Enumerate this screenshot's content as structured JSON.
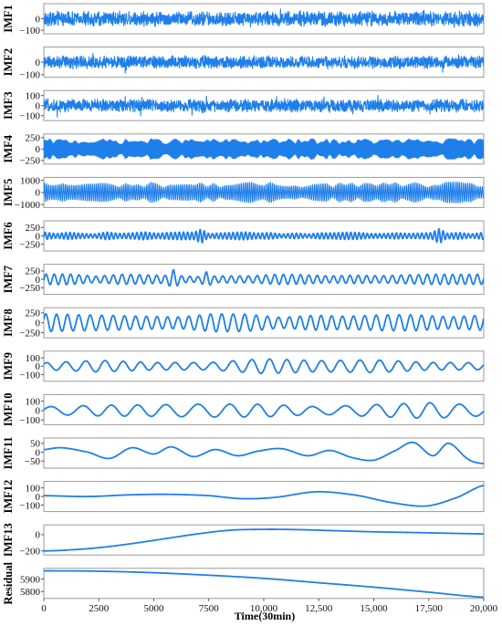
{
  "chart_data": {
    "type": "line",
    "xlabel": "Time(30min)",
    "xlim": [
      0,
      20000
    ],
    "x_ticks": [
      0,
      2500,
      5000,
      7500,
      10000,
      12500,
      15000,
      17500,
      20000
    ],
    "x_tick_labels": [
      "0",
      "2500",
      "5000",
      "7500",
      "10,000",
      "12,500",
      "15,000",
      "17,500",
      "20,000"
    ],
    "grid": false,
    "line_color": "#1f7fea",
    "panels": [
      {
        "name": "IMF1",
        "ylim": [
          -130,
          130
        ],
        "y_ticks": [
          0,
          -100
        ],
        "y_tick_labels": [
          "0",
          "−100"
        ],
        "amplitude": 70,
        "kind": "noise",
        "wave_count": 5000
      },
      {
        "name": "IMF2",
        "ylim": [
          -120,
          120
        ],
        "y_ticks": [
          0,
          -100
        ],
        "y_tick_labels": [
          "0",
          "−100"
        ],
        "amplitude": 55,
        "kind": "noise",
        "wave_count": 2500
      },
      {
        "name": "IMF3",
        "ylim": [
          -150,
          150
        ],
        "y_ticks": [
          100,
          0,
          -100
        ],
        "y_tick_labels": [
          "100",
          "0",
          "−100"
        ],
        "amplitude": 70,
        "kind": "noise",
        "wave_count": 1250
      },
      {
        "name": "IMF4",
        "ylim": [
          -330,
          330
        ],
        "y_ticks": [
          250,
          0,
          -250
        ],
        "y_tick_labels": [
          "250",
          "0",
          "−250"
        ],
        "amplitude": 230,
        "kind": "oscillation",
        "wave_count": 420
      },
      {
        "name": "IMF5",
        "ylim": [
          -1250,
          1250
        ],
        "y_ticks": [
          1000,
          0,
          -1000
        ],
        "y_tick_labels": [
          "1000",
          "0",
          "−1000"
        ],
        "amplitude": 880,
        "kind": "oscillation",
        "wave_count": 210
      },
      {
        "name": "IMF6",
        "ylim": [
          -450,
          450
        ],
        "y_ticks": [
          250,
          0,
          -250
        ],
        "y_tick_labels": [
          "250",
          "0",
          "−250"
        ],
        "amplitude": 120,
        "kind": "oscillation",
        "wave_count": 105
      },
      {
        "name": "IMF7",
        "ylim": [
          -450,
          450
        ],
        "y_ticks": [
          250,
          0,
          -250
        ],
        "y_tick_labels": [
          "250",
          "0",
          "−250"
        ],
        "amplitude": 160,
        "kind": "oscillation",
        "wave_count": 52
      },
      {
        "name": "IMF8",
        "ylim": [
          -380,
          380
        ],
        "y_ticks": [
          250,
          0,
          -250
        ],
        "y_tick_labels": [
          "250",
          "0",
          "−250"
        ],
        "amplitude": 230,
        "kind": "oscillation",
        "wave_count": 40
      },
      {
        "name": "IMF9",
        "ylim": [
          -180,
          180
        ],
        "y_ticks": [
          100,
          0,
          -100
        ],
        "y_tick_labels": [
          "100",
          "0",
          "−100"
        ],
        "amplitude": 90,
        "kind": "oscillation",
        "wave_count": 24
      },
      {
        "name": "IMF10",
        "ylim": [
          -150,
          170
        ],
        "y_ticks": [
          100,
          0,
          -100
        ],
        "y_tick_labels": [
          "100",
          "0",
          "−100"
        ],
        "amplitude": 85,
        "kind": "oscillation",
        "wave_count": 15
      },
      {
        "name": "IMF11",
        "ylim": [
          -90,
          80
        ],
        "y_ticks": [
          50,
          0,
          -50
        ],
        "y_tick_labels": [
          "50",
          "0",
          "−50"
        ],
        "amplitude": 30,
        "kind": "imf11",
        "wave_count": 8
      },
      {
        "name": "IMF12",
        "ylim": [
          -175,
          175
        ],
        "y_ticks": [
          100,
          0,
          -100
        ],
        "y_tick_labels": [
          "100",
          "0",
          "−100"
        ],
        "kind": "curve",
        "x": [
          0,
          2000,
          4000,
          5700,
          7500,
          9000,
          10500,
          12400,
          14200,
          15800,
          17400,
          18800,
          20000
        ],
        "y": [
          10,
          0,
          20,
          25,
          10,
          -25,
          -10,
          55,
          15,
          -70,
          -110,
          -10,
          130
        ]
      },
      {
        "name": "IMF13",
        "ylim": [
          -250,
          120
        ],
        "y_ticks": [
          0,
          -200
        ],
        "y_tick_labels": [
          "0",
          "−200"
        ],
        "kind": "curve",
        "x": [
          0,
          1000,
          2500,
          4000,
          5500,
          7000,
          8500,
          10000,
          11500,
          13000,
          15000,
          17000,
          20000
        ],
        "y": [
          -200,
          -190,
          -160,
          -110,
          -50,
          10,
          55,
          65,
          62,
          50,
          35,
          25,
          10
        ]
      },
      {
        "name": "Residual",
        "ylim": [
          5745,
          5985
        ],
        "y_ticks": [
          5900,
          5800
        ],
        "y_tick_labels": [
          "5900",
          "5800"
        ],
        "kind": "curve",
        "x": [
          0,
          2500,
          5000,
          7500,
          10000,
          12500,
          15000,
          17500,
          20000
        ],
        "y": [
          5965,
          5962,
          5950,
          5930,
          5905,
          5870,
          5835,
          5795,
          5755
        ]
      }
    ]
  }
}
